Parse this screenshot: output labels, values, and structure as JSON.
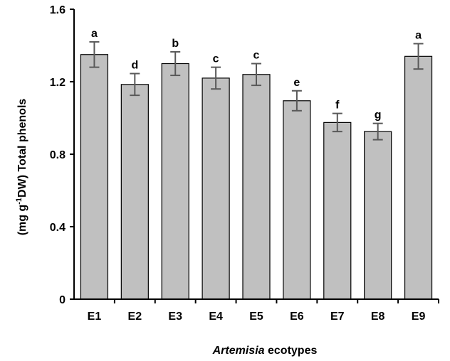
{
  "chart_data": {
    "type": "bar",
    "categories": [
      "E1",
      "E2",
      "E3",
      "E4",
      "E5",
      "E6",
      "E7",
      "E8",
      "E9"
    ],
    "series": [
      {
        "values": [
          1.35,
          1.185,
          1.3,
          1.22,
          1.24,
          1.095,
          0.975,
          0.925,
          1.34
        ],
        "errors": [
          0.07,
          0.06,
          0.065,
          0.06,
          0.06,
          0.055,
          0.05,
          0.045,
          0.07
        ],
        "significance": [
          "a",
          "d",
          "b",
          "c",
          "c",
          "e",
          "f",
          "g",
          "a"
        ]
      }
    ],
    "ylim": [
      0,
      1.6
    ],
    "yticks": [
      "0",
      "0.4",
      "0.8",
      "1.2",
      "1.6"
    ],
    "ylabel": {
      "prefix": "(mg g",
      "superscript": "-1",
      "suffix": "DW) Total phenols"
    },
    "xlabel": {
      "italic": "Artemisia",
      "rest": " ecotypes"
    },
    "grid": false,
    "legend": "none",
    "bar_color": "#c0c0c0",
    "bar_edge_color": "#000000",
    "error_bar_color": "#595959"
  }
}
